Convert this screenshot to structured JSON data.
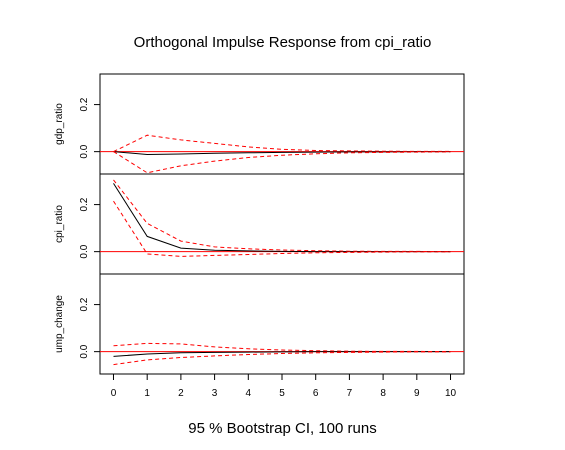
{
  "chart_data": {
    "type": "line",
    "title": "Orthogonal Impulse Response from cpi_ratio",
    "subtitle": "95 % Bootstrap CI,  100 runs",
    "x": [
      0,
      1,
      2,
      3,
      4,
      5,
      6,
      7,
      8,
      9,
      10
    ],
    "x_ticks": [
      0,
      1,
      2,
      3,
      4,
      5,
      6,
      7,
      8,
      9,
      10
    ],
    "xlim": [
      -0.4,
      10.4
    ],
    "y_ticks": [
      0.0,
      0.2
    ],
    "ylim": [
      -0.095,
      0.33
    ],
    "grid": false,
    "panels": [
      {
        "ylabel": "gdp_ratio",
        "series": [
          {
            "role": "response",
            "values": [
              0.0,
              -0.012,
              -0.01,
              -0.007,
              -0.005,
              -0.003,
              -0.002,
              -0.001,
              -0.001,
              0.0,
              0.0
            ]
          },
          {
            "role": "upper",
            "values": [
              0.0,
              0.07,
              0.05,
              0.035,
              0.02,
              0.01,
              0.005,
              0.003,
              0.002,
              0.001,
              0.001
            ]
          },
          {
            "role": "lower",
            "values": [
              0.0,
              -0.09,
              -0.06,
              -0.04,
              -0.025,
              -0.015,
              -0.009,
              -0.005,
              -0.003,
              -0.002,
              -0.001
            ]
          }
        ]
      },
      {
        "ylabel": "cpi_ratio",
        "series": [
          {
            "role": "response",
            "values": [
              0.29,
              0.065,
              0.015,
              0.006,
              0.003,
              0.001,
              0.0,
              0.0,
              0.0,
              0.0,
              0.0
            ]
          },
          {
            "role": "upper",
            "values": [
              0.305,
              0.12,
              0.045,
              0.02,
              0.012,
              0.007,
              0.004,
              0.002,
              0.001,
              0.001,
              0.0
            ]
          },
          {
            "role": "lower",
            "values": [
              0.215,
              -0.01,
              -0.02,
              -0.016,
              -0.012,
              -0.008,
              -0.005,
              -0.003,
              -0.002,
              -0.001,
              -0.001
            ]
          }
        ]
      },
      {
        "ylabel": "ump_change",
        "series": [
          {
            "role": "response",
            "values": [
              -0.02,
              -0.01,
              -0.005,
              -0.003,
              -0.002,
              -0.001,
              0.0,
              0.0,
              0.0,
              0.0,
              0.0
            ]
          },
          {
            "role": "upper",
            "values": [
              0.025,
              0.035,
              0.033,
              0.02,
              0.012,
              0.007,
              0.004,
              0.002,
              0.001,
              0.001,
              0.0
            ]
          },
          {
            "role": "lower",
            "values": [
              -0.055,
              -0.035,
              -0.025,
              -0.018,
              -0.012,
              -0.008,
              -0.005,
              -0.003,
              -0.002,
              -0.001,
              -0.001
            ]
          }
        ]
      }
    ]
  },
  "colors": {
    "response": "#000000",
    "ci": "#ff0000",
    "zero_line": "#ff0000",
    "axis": "#000000"
  }
}
